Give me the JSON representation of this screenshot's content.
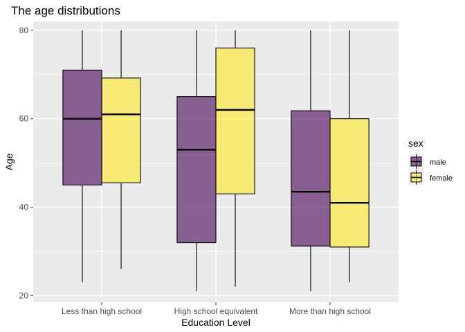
{
  "chart_data": {
    "type": "boxplot",
    "title": "The age distributions",
    "xlabel": "Education Level",
    "ylabel": "Age",
    "categories": [
      "Less than high school",
      "High school equivalent",
      "More than high school"
    ],
    "ylim": [
      18.5,
      82
    ],
    "yticks": [
      20,
      40,
      60,
      80
    ],
    "grid": true,
    "legend": {
      "title": "sex",
      "position": "right"
    },
    "series": [
      {
        "name": "male",
        "color": "#440154",
        "boxes": [
          {
            "min": 23,
            "q1": 45,
            "median": 60,
            "q3": 71,
            "max": 80
          },
          {
            "min": 21,
            "q1": 32,
            "median": 53,
            "q3": 65,
            "max": 80
          },
          {
            "min": 21,
            "q1": 31.2,
            "median": 43.5,
            "q3": 61.8,
            "max": 80
          }
        ]
      },
      {
        "name": "female",
        "color": "#fde725",
        "boxes": [
          {
            "min": 26,
            "q1": 45.5,
            "median": 61,
            "q3": 69.2,
            "max": 80
          },
          {
            "min": 22,
            "q1": 43,
            "median": 62,
            "q3": 76,
            "max": 80
          },
          {
            "min": 23,
            "q1": 31,
            "median": 41,
            "q3": 60,
            "max": 80
          }
        ]
      }
    ]
  }
}
